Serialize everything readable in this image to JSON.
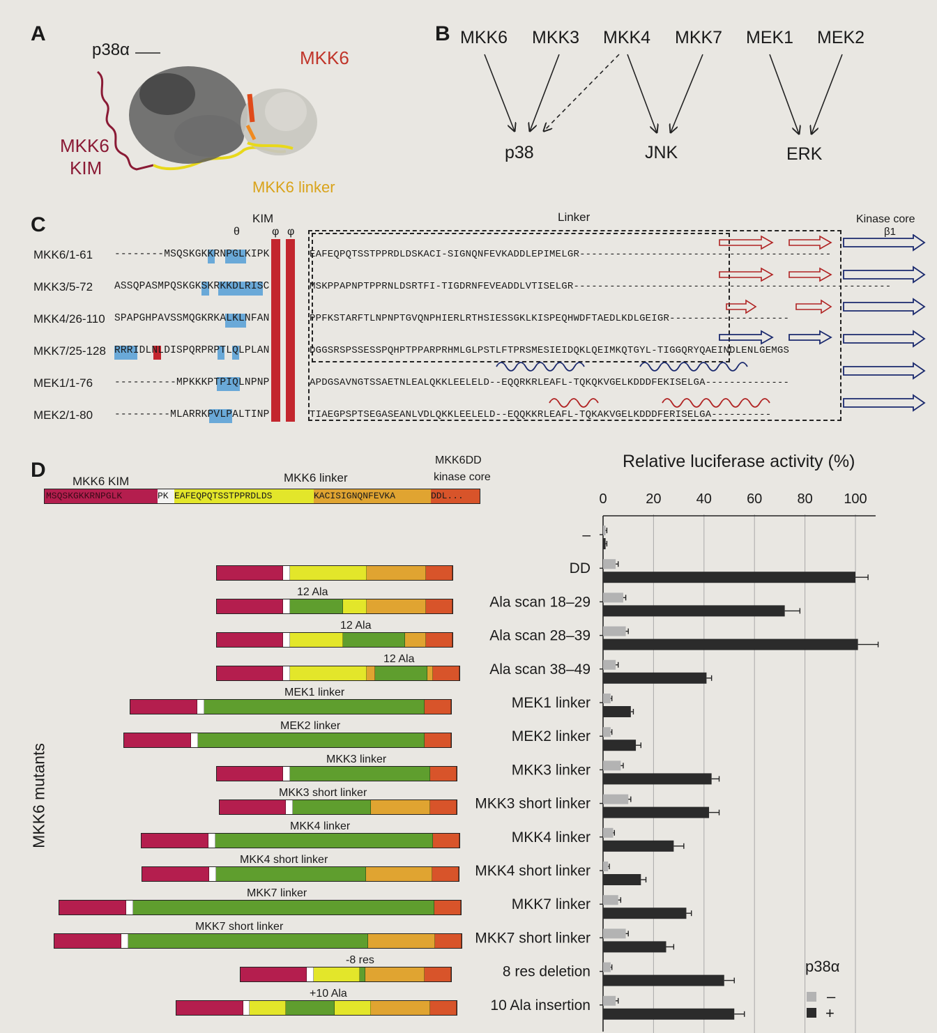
{
  "panelA": {
    "letter": "A",
    "labels": {
      "p38a": "p38α",
      "mkk6": "MKK6",
      "kim_line1": "MKK6",
      "kim_line2": "KIM",
      "linker": "MKK6 linker"
    }
  },
  "panelB": {
    "letter": "B",
    "kinases": [
      "MKK6",
      "MKK3",
      "MKK4",
      "MKK7",
      "MEK1",
      "MEK2"
    ],
    "targets": [
      "p38",
      "JNK",
      "ERK"
    ]
  },
  "panelC": {
    "letter": "C",
    "headers": {
      "kim": "KIM",
      "theta": "θ",
      "phi1": "φ",
      "phi2": "φ",
      "linker": "Linker",
      "core": "Kinase core",
      "beta": "β1"
    },
    "rows": [
      {
        "name": "MKK6/1-61",
        "left": "--------MSQSKGKKRNPGLKIPK",
        "right": "------------------------------------------EAFEQPQTSSTPPRDLDSKACI-SIGNQNFEVKADDLEPIMELGR"
      },
      {
        "name": "MKK3/5-72",
        "left": "ASSQPASMPQSKGKSKRKKDLRISC",
        "right": "-----------------------------------------------------MSKPPAPNPTPPRNLDSRTFI-TIGDRNFEVEADDLVTISELGR"
      },
      {
        "name": "MKK4/26-110",
        "left": "SPAPGHPAVSSMQGKRKALKLNFAN",
        "right": "--------------------PPFKSTARFTLNPNPTGVQNPHIERLRTHSIESSGKLKISPEQHWDFTAEDLKDLGEIGR"
      },
      {
        "name": "MKK7/25-128",
        "left": "RRRIDLNLDISPQRPRPTLQLPLAN",
        "right": "DGGSRSPSSESSPQHPTPPARPRHMLGLPSTLFTPRSMESIEIDQKLQEIMKQTGYL-TIGGQRYQAEINDLENLGEMGS"
      },
      {
        "name": "MEK1/1-76",
        "left": "----------MPKKKPTPIQLNPNP",
        "right": "--------------APDGSAVNGTSSAETNLEALQKKLEELELD--EQQRKRLEAFL-TQKQKVGELKDDDFEKISELGA"
      },
      {
        "name": "MEK2/1-80",
        "left": "---------MLARRKPVLPALTINP",
        "right": "----------TIAEGPSPTSEGASEANLVDLQKKLEELELD--EQQKKRLEAFL-TQKAKVGELKDDDFERISELGA"
      }
    ]
  },
  "panelD": {
    "letter": "D",
    "legend_header": {
      "kim": "MKK6 KIM",
      "linker": "MKK6 linker",
      "core_l1": "MKK6DD",
      "core_l2": "kinase core"
    },
    "header_seq": {
      "kim": "MSQSKGKKRNPGLK",
      "pk": "PK",
      "linker": "EAFEQPQTSSTPPRDLDS",
      "kac": "KACISIGNQNFEVKA",
      "ddl": "DDL..."
    },
    "side_label": "MKK6 mutants",
    "construct_labels": [
      "12 Ala",
      "12 Ala",
      "12 Ala",
      "MEK1 linker",
      "MEK2 linker",
      "MKK3 linker",
      "MKK3 short linker",
      "MKK4 linker",
      "MKK4 short linker",
      "MKK7 linker",
      "MKK7 short linker",
      "-8 res",
      "+10 Ala"
    ]
  },
  "chart_data": {
    "type": "bar",
    "orientation": "horizontal",
    "title": "Relative luciferase activity (%)",
    "xlim": [
      0,
      110
    ],
    "xticks": [
      0,
      20,
      40,
      60,
      80,
      100
    ],
    "grid": true,
    "categories": [
      "–",
      "DD",
      "Ala scan 18–29",
      "Ala scan 28–39",
      "Ala scan 38–49",
      "MEK1 linker",
      "MEK2 linker",
      "MKK3 linker",
      "MKK3 short linker",
      "MKK4 linker",
      "MKK4 short linker",
      "MKK7 linker",
      "MKK7 short linker",
      "8 res deletion",
      "10 Ala insertion"
    ],
    "series": [
      {
        "name": "–",
        "color": "#b3b3b3",
        "values": [
          1,
          5,
          8,
          9,
          5,
          3,
          3,
          7,
          10,
          4,
          2,
          6,
          9,
          3,
          5
        ],
        "errors": [
          0.5,
          1,
          1,
          1,
          1,
          0.5,
          0.5,
          1,
          1,
          0.5,
          0.5,
          1,
          1,
          0.5,
          1
        ]
      },
      {
        "name": "+",
        "color": "#2b2b2b",
        "values": [
          1,
          100,
          72,
          101,
          41,
          11,
          13,
          43,
          42,
          28,
          15,
          33,
          25,
          48,
          52
        ],
        "errors": [
          0.5,
          5,
          6,
          8,
          2,
          1,
          2,
          3,
          4,
          4,
          2,
          2,
          3,
          4,
          4
        ]
      }
    ],
    "legend": {
      "title": "p38α",
      "position": "bottom-right",
      "minus": "–",
      "plus": "+"
    }
  },
  "colors": {
    "kim": "#b41e4e",
    "linker_yellow": "#e3e62a",
    "linker_yellowgreen": "#c5d62a",
    "ala_green": "#5f9e2e",
    "kac_orange": "#e0a431",
    "core_red": "#d8542a",
    "blue_highlight": "#6aa9d8",
    "red_highlight": "#c3262e"
  }
}
